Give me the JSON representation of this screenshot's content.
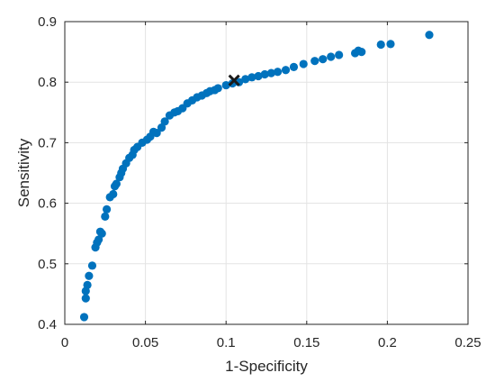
{
  "chart_data": {
    "type": "scatter",
    "title": "",
    "xlabel": "1-Specificity",
    "ylabel": "Sensitivity",
    "xlim": [
      0,
      0.25
    ],
    "ylim": [
      0.4,
      0.9
    ],
    "xticks": [
      0,
      0.05,
      0.1,
      0.15,
      0.2,
      0.25
    ],
    "xtick_labels": [
      "0",
      "0.05",
      "0.1",
      "0.15",
      "0.2",
      "0.25"
    ],
    "yticks": [
      0.4,
      0.5,
      0.6,
      0.7,
      0.8,
      0.9
    ],
    "ytick_labels": [
      "0.4",
      "0.5",
      "0.6",
      "0.7",
      "0.8",
      "0.9"
    ],
    "grid": true,
    "colors": {
      "points": "#0072BD",
      "marker": "#1a1a1a",
      "grid": "#e3e3e3",
      "axis": "#262626"
    },
    "series": [
      {
        "marker": "circle",
        "x": [
          0.012,
          0.013,
          0.013,
          0.014,
          0.015,
          0.017,
          0.019,
          0.02,
          0.021,
          0.022,
          0.023,
          0.025,
          0.026,
          0.028,
          0.03,
          0.031,
          0.032,
          0.034,
          0.035,
          0.036,
          0.038,
          0.04,
          0.042,
          0.043,
          0.045,
          0.048,
          0.051,
          0.053,
          0.055,
          0.057,
          0.06,
          0.062,
          0.065,
          0.068,
          0.07,
          0.073,
          0.076,
          0.079,
          0.082,
          0.085,
          0.088,
          0.09,
          0.093,
          0.095,
          0.1,
          0.104,
          0.108,
          0.112,
          0.116,
          0.12,
          0.124,
          0.128,
          0.132,
          0.137,
          0.142,
          0.148,
          0.155,
          0.16,
          0.165,
          0.17,
          0.18,
          0.182,
          0.184,
          0.196,
          0.202,
          0.226
        ],
        "y": [
          0.412,
          0.443,
          0.455,
          0.465,
          0.48,
          0.497,
          0.527,
          0.535,
          0.54,
          0.553,
          0.55,
          0.578,
          0.59,
          0.61,
          0.615,
          0.628,
          0.632,
          0.643,
          0.65,
          0.657,
          0.666,
          0.675,
          0.68,
          0.688,
          0.693,
          0.7,
          0.705,
          0.71,
          0.718,
          0.716,
          0.725,
          0.735,
          0.745,
          0.75,
          0.752,
          0.757,
          0.765,
          0.77,
          0.775,
          0.778,
          0.782,
          0.785,
          0.787,
          0.79,
          0.795,
          0.798,
          0.8,
          0.805,
          0.808,
          0.81,
          0.813,
          0.815,
          0.817,
          0.82,
          0.825,
          0.83,
          0.835,
          0.838,
          0.842,
          0.845,
          0.848,
          0.852,
          0.85,
          0.862,
          0.863,
          0.878
        ]
      },
      {
        "marker": "x",
        "x": [
          0.105
        ],
        "y": [
          0.803
        ]
      }
    ]
  }
}
